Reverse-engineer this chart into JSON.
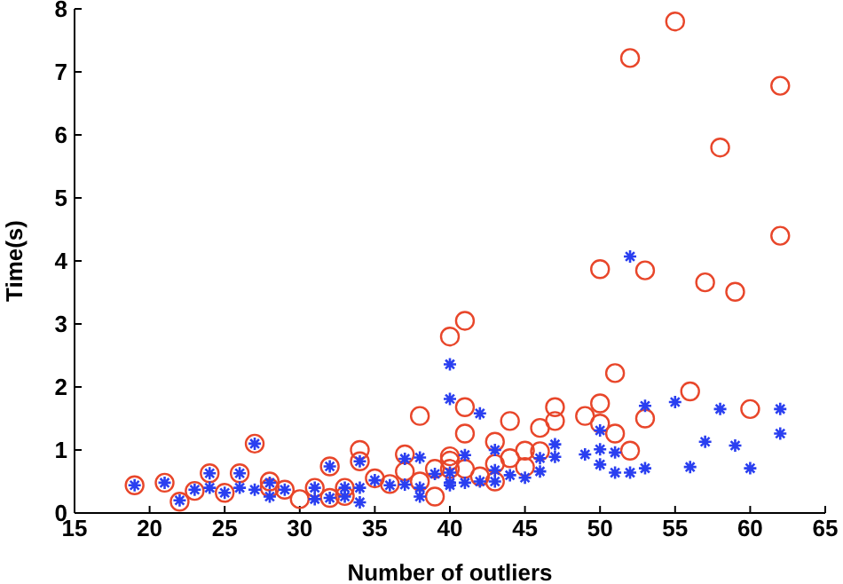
{
  "chart_data": {
    "type": "scatter",
    "xlabel": "Number of outliers",
    "ylabel": "Time(s)",
    "xlim": [
      15,
      65
    ],
    "xticks": [
      15,
      20,
      25,
      30,
      35,
      40,
      45,
      50,
      55,
      60,
      65
    ],
    "ylim": [
      0,
      8
    ],
    "yticks": [
      0,
      1,
      2,
      3,
      4,
      5,
      6,
      7,
      8
    ],
    "grid": false,
    "legend": false,
    "series": [
      {
        "color": "#e8462a",
        "marker": "circle",
        "x": [
          19,
          21,
          22,
          23,
          24,
          25,
          26,
          27,
          28,
          28,
          29,
          30,
          31,
          32,
          32,
          33,
          33,
          34,
          34,
          35,
          36,
          37,
          37,
          38,
          38,
          39,
          39,
          40,
          40,
          40,
          40,
          41,
          41,
          41,
          41,
          42,
          43,
          43,
          43,
          44,
          44,
          45,
          45,
          46,
          46,
          47,
          47,
          49,
          50,
          50,
          50,
          51,
          51,
          52,
          52,
          53,
          53,
          55,
          56,
          57,
          58,
          59,
          60,
          62,
          62
        ],
        "values": [
          0.44,
          0.48,
          0.18,
          0.35,
          0.63,
          0.32,
          0.63,
          1.1,
          0.5,
          0.4,
          0.37,
          0.22,
          0.4,
          0.74,
          0.24,
          0.4,
          0.27,
          1.0,
          0.82,
          0.55,
          0.46,
          0.93,
          0.66,
          1.54,
          0.5,
          0.7,
          0.26,
          2.8,
          0.9,
          0.83,
          0.7,
          3.05,
          1.68,
          1.26,
          0.7,
          0.58,
          1.13,
          0.78,
          0.5,
          1.46,
          0.87,
          0.99,
          0.73,
          1.35,
          0.98,
          1.68,
          1.46,
          1.54,
          3.87,
          1.74,
          1.42,
          2.22,
          1.26,
          7.22,
          0.99,
          3.85,
          1.5,
          7.8,
          1.93,
          3.66,
          5.8,
          3.51,
          1.65,
          6.78,
          4.4
        ]
      },
      {
        "color": "#2a3ff0",
        "marker": "cross",
        "x": [
          19,
          21,
          22,
          23,
          24,
          24,
          25,
          26,
          26,
          27,
          27,
          28,
          28,
          29,
          31,
          31,
          32,
          32,
          33,
          33,
          34,
          34,
          34,
          35,
          36,
          37,
          37,
          38,
          38,
          38,
          39,
          40,
          40,
          40,
          40,
          40,
          41,
          41,
          42,
          42,
          43,
          43,
          43,
          44,
          45,
          46,
          46,
          47,
          47,
          49,
          50,
          50,
          50,
          51,
          51,
          52,
          52,
          53,
          53,
          55,
          56,
          57,
          58,
          59,
          60,
          62,
          62
        ],
        "values": [
          0.44,
          0.48,
          0.2,
          0.37,
          0.4,
          0.63,
          0.32,
          0.4,
          0.63,
          1.1,
          0.37,
          0.48,
          0.26,
          0.37,
          0.4,
          0.22,
          0.74,
          0.24,
          0.4,
          0.26,
          0.82,
          0.4,
          0.17,
          0.52,
          0.44,
          0.86,
          0.45,
          0.88,
          0.4,
          0.26,
          0.62,
          2.36,
          1.81,
          0.64,
          0.48,
          0.44,
          0.92,
          0.48,
          1.58,
          0.5,
          1.0,
          0.68,
          0.5,
          0.6,
          0.56,
          0.87,
          0.66,
          1.09,
          0.89,
          0.93,
          1.31,
          1.01,
          0.77,
          0.96,
          0.64,
          4.07,
          0.64,
          1.7,
          0.71,
          1.76,
          0.73,
          1.13,
          1.65,
          1.07,
          0.71,
          1.65,
          1.26
        ]
      }
    ]
  }
}
